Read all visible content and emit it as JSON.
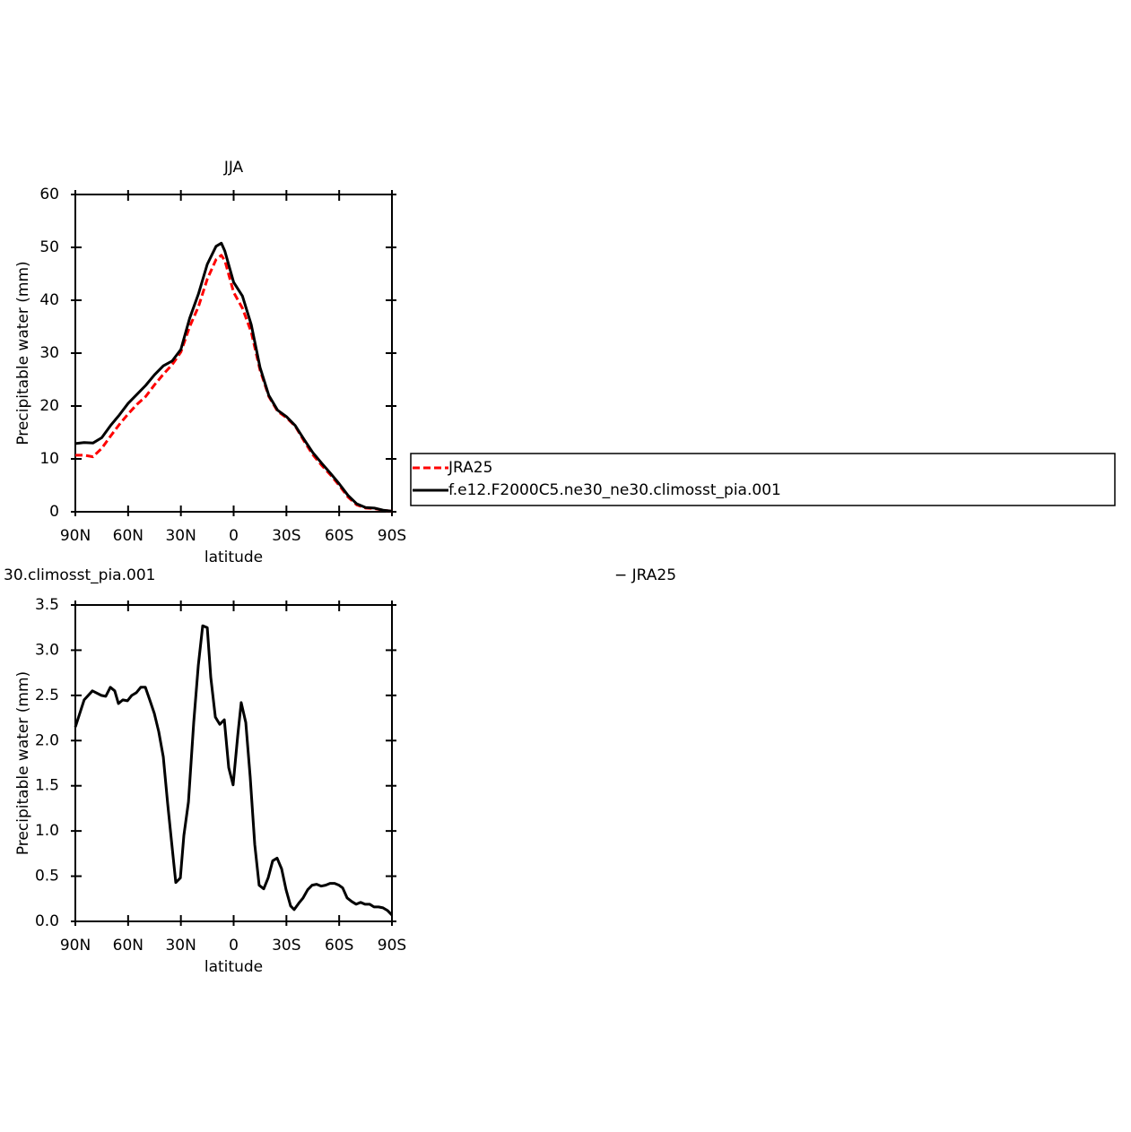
{
  "chart_data": [
    {
      "type": "line",
      "title": "JJA",
      "xlabel": "latitude",
      "ylabel": "Precipitable water (mm)",
      "x": [
        90,
        85,
        80,
        75,
        70,
        65,
        60,
        55,
        50,
        45,
        40,
        35,
        30,
        25,
        20,
        15,
        10,
        7,
        5,
        0,
        -5,
        -10,
        -15,
        -20,
        -25,
        -30,
        -35,
        -40,
        -45,
        -50,
        -55,
        -60,
        -65,
        -70,
        -75,
        -80,
        -85,
        -90
      ],
      "series": [
        {
          "name": "JRA25",
          "color": "#ff0000",
          "dashed": true,
          "values": [
            10.7,
            10.7,
            10.4,
            12,
            14.3,
            16.5,
            18.5,
            20.3,
            21.8,
            24,
            26,
            27.8,
            30.2,
            35,
            38.8,
            44,
            47.7,
            48.5,
            47.5,
            41.5,
            38.5,
            34,
            26.8,
            21.8,
            19,
            17.8,
            16.2,
            13.4,
            10.8,
            8.8,
            7,
            5,
            2.8,
            1.3,
            0.7,
            0.6,
            0.3,
            0.1
          ]
        },
        {
          "name": "f.e12.F2000C5.ne30_ne30.climosst_pia.001",
          "color": "#000000",
          "dashed": false,
          "values": [
            12.9,
            13.1,
            13,
            14,
            16.3,
            18.3,
            20.5,
            22.2,
            23.9,
            25.9,
            27.6,
            28.5,
            30.7,
            36.6,
            41.2,
            46.8,
            50.2,
            50.8,
            49.3,
            43.4,
            40.8,
            35.4,
            27.3,
            22,
            19.2,
            18,
            16.3,
            13.7,
            11.2,
            9.2,
            7.3,
            5.3,
            3.1,
            1.5,
            0.8,
            0.7,
            0.3,
            0.1
          ]
        }
      ],
      "xlim": [
        90,
        -90
      ],
      "xticks": [
        {
          "value": 90,
          "label": "90N"
        },
        {
          "value": 60,
          "label": "60N"
        },
        {
          "value": 30,
          "label": "30N"
        },
        0,
        {
          "value": -30,
          "label": "30S"
        },
        {
          "value": -60,
          "label": "60S"
        },
        {
          "value": -90,
          "label": "90S"
        }
      ],
      "ylim": [
        0,
        60
      ],
      "yticks": [
        0,
        10,
        20,
        30,
        40,
        50,
        60
      ],
      "legend": "right"
    },
    {
      "type": "line",
      "title": "30.climosst_pia.001",
      "subtitle": "− JRA25",
      "xlabel": "latitude",
      "ylabel": "Precipitable water (mm)",
      "x": [
        90,
        85,
        80.3,
        75.2,
        72.7,
        70.1,
        67.6,
        65.5,
        63,
        60.4,
        57.9,
        55.3,
        52.8,
        50.2,
        47.7,
        45.1,
        42.6,
        40,
        37.5,
        35.4,
        32.9,
        30.3,
        28.3,
        25.7,
        22.7,
        20.1,
        17.6,
        15,
        13,
        10.4,
        7.9,
        5.3,
        2.8,
        0.3,
        -2.3,
        -4.3,
        -6.9,
        -9.4,
        -12,
        -14.5,
        -17.1,
        -19.6,
        -22.2,
        -24.7,
        -27.3,
        -29.8,
        -32.4,
        -34.4,
        -37,
        -39.5,
        -42.1,
        -44.6,
        -47.2,
        -49.7,
        -52.3,
        -54.8,
        -57.4,
        -59.9,
        -62,
        -64.5,
        -67.1,
        -69.6,
        -72.2,
        -74.7,
        -77.3,
        -79.8,
        -82.4,
        -84.9,
        -87.5,
        -90
      ],
      "series": [
        {
          "color": "#000000",
          "dashed": false,
          "values": [
            2.15,
            2.45,
            2.55,
            2.5,
            2.49,
            2.59,
            2.55,
            2.41,
            2.45,
            2.44,
            2.5,
            2.53,
            2.59,
            2.59,
            2.45,
            2.3,
            2.1,
            1.82,
            1.3,
            0.9,
            0.43,
            0.48,
            0.95,
            1.32,
            2.2,
            2.83,
            3.27,
            3.25,
            2.7,
            2.26,
            2.18,
            2.23,
            1.7,
            1.51,
            2.05,
            2.42,
            2.2,
            1.6,
            0.85,
            0.4,
            0.36,
            0.48,
            0.67,
            0.7,
            0.58,
            0.35,
            0.17,
            0.13,
            0.2,
            0.26,
            0.35,
            0.4,
            0.41,
            0.39,
            0.4,
            0.42,
            0.42,
            0.4,
            0.37,
            0.26,
            0.22,
            0.19,
            0.21,
            0.19,
            0.19,
            0.16,
            0.16,
            0.15,
            0.12,
            0.07
          ]
        }
      ],
      "xlim": [
        90,
        -90
      ],
      "xticks": [
        {
          "value": 90,
          "label": "90N"
        },
        {
          "value": 60,
          "label": "60N"
        },
        {
          "value": 30,
          "label": "30N"
        },
        0,
        {
          "value": -30,
          "label": "30S"
        },
        {
          "value": -60,
          "label": "60S"
        },
        {
          "value": -90,
          "label": "90S"
        }
      ],
      "ylim": [
        0,
        3.5
      ],
      "yticks": [
        {
          "value": 0,
          "label": "0.0"
        },
        0.5,
        {
          "value": 1,
          "label": "1.0"
        },
        1.5,
        {
          "value": 2,
          "label": "2.0"
        },
        2.5,
        {
          "value": 3,
          "label": "3.0"
        },
        3.5
      ]
    }
  ]
}
